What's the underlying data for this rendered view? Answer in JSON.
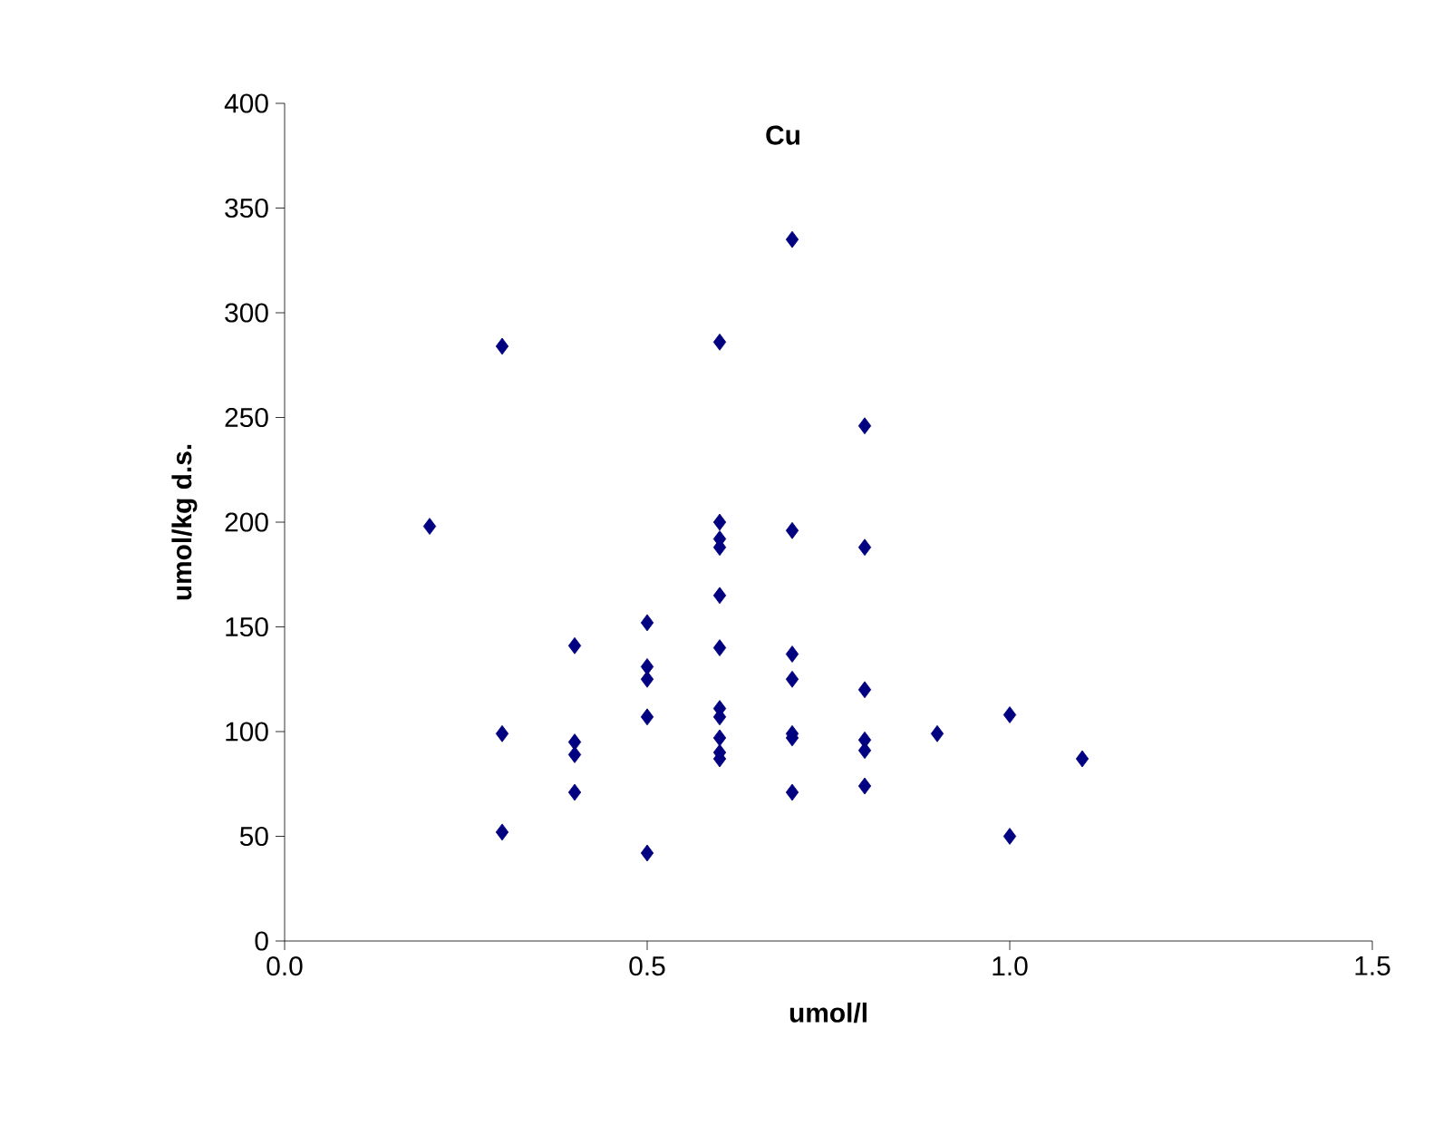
{
  "chart_data": {
    "type": "scatter",
    "title": "Cu",
    "xlabel": "umol/l",
    "ylabel": "umol/kg d.s.",
    "xlim": [
      0,
      1.5
    ],
    "ylim": [
      0,
      400
    ],
    "xticks": [
      {
        "value": 0,
        "label": "0.0"
      },
      {
        "value": 0.5,
        "label": "0.5"
      },
      {
        "value": 1,
        "label": "1.0"
      },
      {
        "value": 1.5,
        "label": "1.5"
      }
    ],
    "yticks": [
      0,
      50,
      100,
      150,
      200,
      250,
      300,
      350,
      400
    ],
    "marker": "diamond",
    "grid": false,
    "series": [
      {
        "color": "#000080",
        "x": [
          0.2,
          0.3,
          0.3,
          0.3,
          0.4,
          0.4,
          0.4,
          0.4,
          0.5,
          0.5,
          0.5,
          0.5,
          0.5,
          0.6,
          0.6,
          0.6,
          0.6,
          0.6,
          0.6,
          0.6,
          0.6,
          0.6,
          0.6,
          0.6,
          0.7,
          0.7,
          0.7,
          0.7,
          0.7,
          0.7,
          0.7,
          0.8,
          0.8,
          0.8,
          0.8,
          0.8,
          0.8,
          0.9,
          1.0,
          1.0,
          1.1
        ],
        "values": [
          198,
          284,
          99,
          52,
          141,
          95,
          89,
          71,
          152,
          131,
          125,
          107,
          42,
          286,
          200,
          192,
          188,
          165,
          140,
          111,
          107,
          97,
          90,
          87,
          335,
          196,
          137,
          125,
          99,
          97,
          71,
          246,
          188,
          120,
          96,
          91,
          74,
          99,
          108,
          50,
          87
        ]
      }
    ]
  }
}
